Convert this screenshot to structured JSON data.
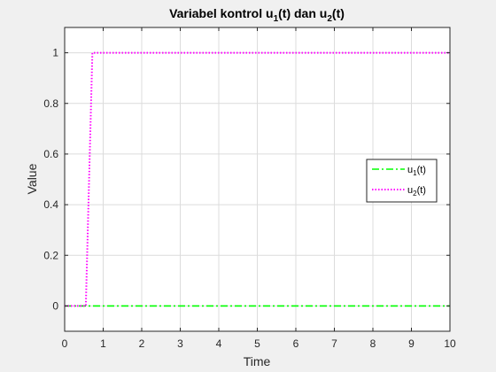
{
  "chart_data": {
    "type": "line",
    "title": {
      "main": "Variabel kontrol u",
      "sub1": "1",
      "mid": "(t) dan u",
      "sub2": "2",
      "end": "(t)"
    },
    "xlabel": "Time",
    "ylabel": "Value",
    "xlim": [
      0,
      10
    ],
    "ylim": [
      -0.1,
      1.1
    ],
    "xticks": [
      0,
      1,
      2,
      3,
      4,
      5,
      6,
      7,
      8,
      9,
      10
    ],
    "yticks": [
      0,
      0.2,
      0.4,
      0.6,
      0.8,
      1
    ],
    "grid": true,
    "legend_position": "right",
    "series": [
      {
        "label_base": "u",
        "label_sub": "1",
        "label_end": "(t)",
        "color": "#00ff00",
        "style": "dash-dot",
        "x": [
          0,
          10
        ],
        "y": [
          0,
          0
        ]
      },
      {
        "label_base": "u",
        "label_sub": "2",
        "label_end": "(t)",
        "color": "#ff00ff",
        "style": "dotted",
        "x": [
          0,
          0.55,
          0.72,
          10
        ],
        "y": [
          0,
          0,
          1,
          1
        ]
      }
    ]
  }
}
